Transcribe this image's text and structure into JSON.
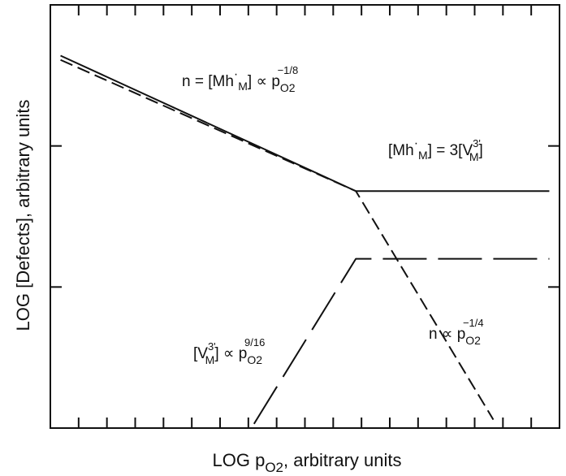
{
  "chart_data": {
    "type": "line",
    "xlabel": {
      "prefix": "LOG p",
      "sub": "O2",
      "suffix": ", arbitrary units"
    },
    "ylabel": "LOG [Defects], arbitrary units",
    "xlim": [
      0,
      1
    ],
    "ylim": [
      0,
      1
    ],
    "grid": false,
    "series": [
      {
        "key": "n",
        "style": "dashed",
        "x": [
          0.02,
          0.6,
          0.87
        ],
        "y": [
          0.87,
          0.56,
          0.02
        ]
      },
      {
        "key": "mh",
        "style": "solid",
        "x": [
          0.02,
          0.6,
          0.98
        ],
        "y": [
          0.88,
          0.56,
          0.56
        ]
      },
      {
        "key": "vm",
        "style": "long-dash",
        "x": [
          0.4,
          0.6,
          0.98
        ],
        "y": [
          0.01,
          0.4,
          0.4
        ]
      }
    ],
    "annotations": [
      {
        "key": "a1",
        "parts": {
          "lhs": "n = [Mh",
          "dot": "·",
          "m": "M",
          "mid": "] ∝ p",
          "sub": "O2",
          "sup": "−1/8"
        }
      },
      {
        "key": "a2",
        "parts": {
          "lhs": "[Mh",
          "dot": "·",
          "m": "M",
          "mid": "] = 3[V",
          "sup": "3'",
          "m2": "M",
          "end": "]"
        }
      },
      {
        "key": "a3",
        "parts": {
          "lhs": "[V",
          "sup": "3'",
          "m": "M",
          "mid": "] ∝ p",
          "sub": "O2",
          "exp": "9/16"
        }
      },
      {
        "key": "a4",
        "parts": {
          "lhs": "n ∝ p",
          "sub": "O2",
          "sup": "−1/4"
        }
      }
    ]
  }
}
